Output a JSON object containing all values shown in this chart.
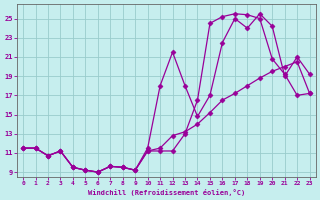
{
  "xlabel": "Windchill (Refroidissement éolien,°C)",
  "bg_color": "#c6eeee",
  "line_color": "#990099",
  "grid_color": "#99cccc",
  "ylim": [
    8.5,
    26.5
  ],
  "xlim": [
    -0.5,
    23.5
  ],
  "yticks": [
    9,
    11,
    13,
    15,
    17,
    19,
    21,
    23,
    25
  ],
  "xticks": [
    0,
    1,
    2,
    3,
    4,
    5,
    6,
    7,
    8,
    9,
    10,
    11,
    12,
    13,
    14,
    15,
    16,
    17,
    18,
    19,
    20,
    21,
    22,
    23
  ],
  "curve1_x": [
    0,
    1,
    2,
    3,
    4,
    5,
    6,
    7,
    8,
    9,
    10,
    11,
    12,
    13,
    14,
    15,
    16,
    17,
    18,
    19,
    20,
    21,
    22,
    23
  ],
  "curve1_y": [
    11.5,
    11.5,
    10.7,
    11.2,
    9.5,
    9.2,
    9.0,
    9.6,
    9.5,
    9.2,
    11.2,
    11.2,
    11.2,
    13.0,
    16.5,
    24.5,
    25.2,
    25.5,
    25.4,
    25.0,
    20.8,
    19.2,
    17.0,
    17.2
  ],
  "curve2_x": [
    0,
    1,
    2,
    3,
    4,
    5,
    6,
    7,
    8,
    9,
    10,
    11,
    12,
    13,
    14,
    15,
    16,
    17,
    18,
    19,
    20,
    21,
    22,
    23
  ],
  "curve2_y": [
    11.5,
    11.5,
    10.7,
    11.2,
    9.5,
    9.2,
    9.0,
    9.6,
    9.5,
    9.2,
    11.5,
    18.0,
    21.5,
    18.0,
    14.8,
    17.0,
    22.5,
    25.0,
    24.0,
    25.5,
    24.2,
    19.0,
    21.0,
    19.2
  ],
  "curve3_x": [
    0,
    1,
    2,
    3,
    4,
    5,
    6,
    7,
    8,
    9,
    10,
    11,
    12,
    13,
    14,
    15,
    16,
    17,
    18,
    19,
    20,
    21,
    22,
    23
  ],
  "curve3_y": [
    11.5,
    11.5,
    10.7,
    11.2,
    9.5,
    9.2,
    9.0,
    9.6,
    9.5,
    9.2,
    11.2,
    11.5,
    12.8,
    13.2,
    14.0,
    15.2,
    16.5,
    17.2,
    18.0,
    18.8,
    19.5,
    20.0,
    20.5,
    17.2
  ]
}
